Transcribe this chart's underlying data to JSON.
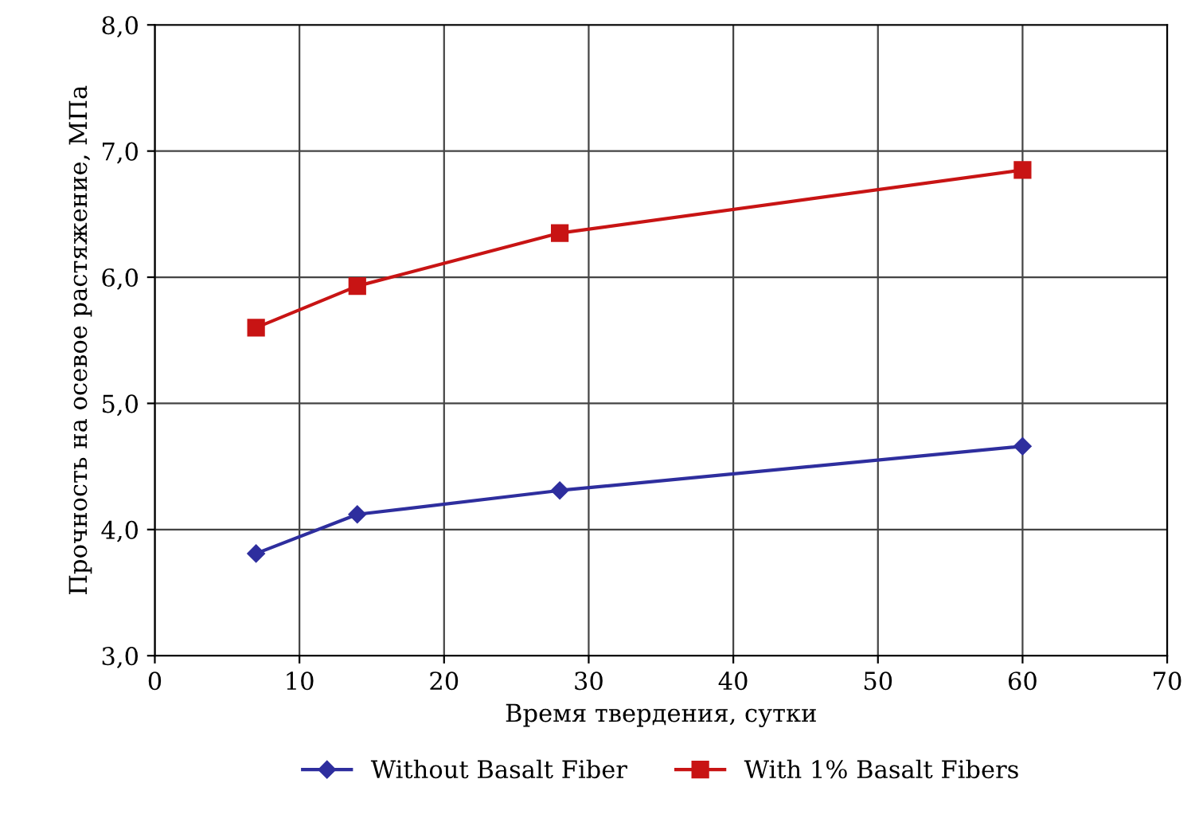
{
  "chart_data": {
    "type": "line",
    "xlabel": "Время твердения, сутки",
    "ylabel": "Прочность на осевое растяжение, МПа",
    "xlim": [
      0,
      70
    ],
    "xticks": [
      0,
      10,
      20,
      30,
      40,
      50,
      60,
      70
    ],
    "ylim": [
      3.0,
      8.0
    ],
    "yticks": [
      {
        "value": 3.0,
        "label": "3,0"
      },
      {
        "value": 4.0,
        "label": "4,0"
      },
      {
        "value": 5.0,
        "label": "5,0"
      },
      {
        "value": 6.0,
        "label": "6,0"
      },
      {
        "value": 7.0,
        "label": "7,0"
      },
      {
        "value": 8.0,
        "label": "8,0"
      }
    ],
    "x": [
      7,
      14,
      28,
      60
    ],
    "series": [
      {
        "name": "Without Basalt Fiber",
        "color": "#2e2e9e",
        "marker": "diamond",
        "values": [
          3.81,
          4.12,
          4.31,
          4.66
        ]
      },
      {
        "name": "With 1% Basalt Fibers",
        "color": "#c81414",
        "marker": "square",
        "values": [
          5.6,
          5.93,
          6.35,
          6.85
        ]
      }
    ],
    "grid": true,
    "legend": "bottom",
    "line_style": "solid"
  }
}
